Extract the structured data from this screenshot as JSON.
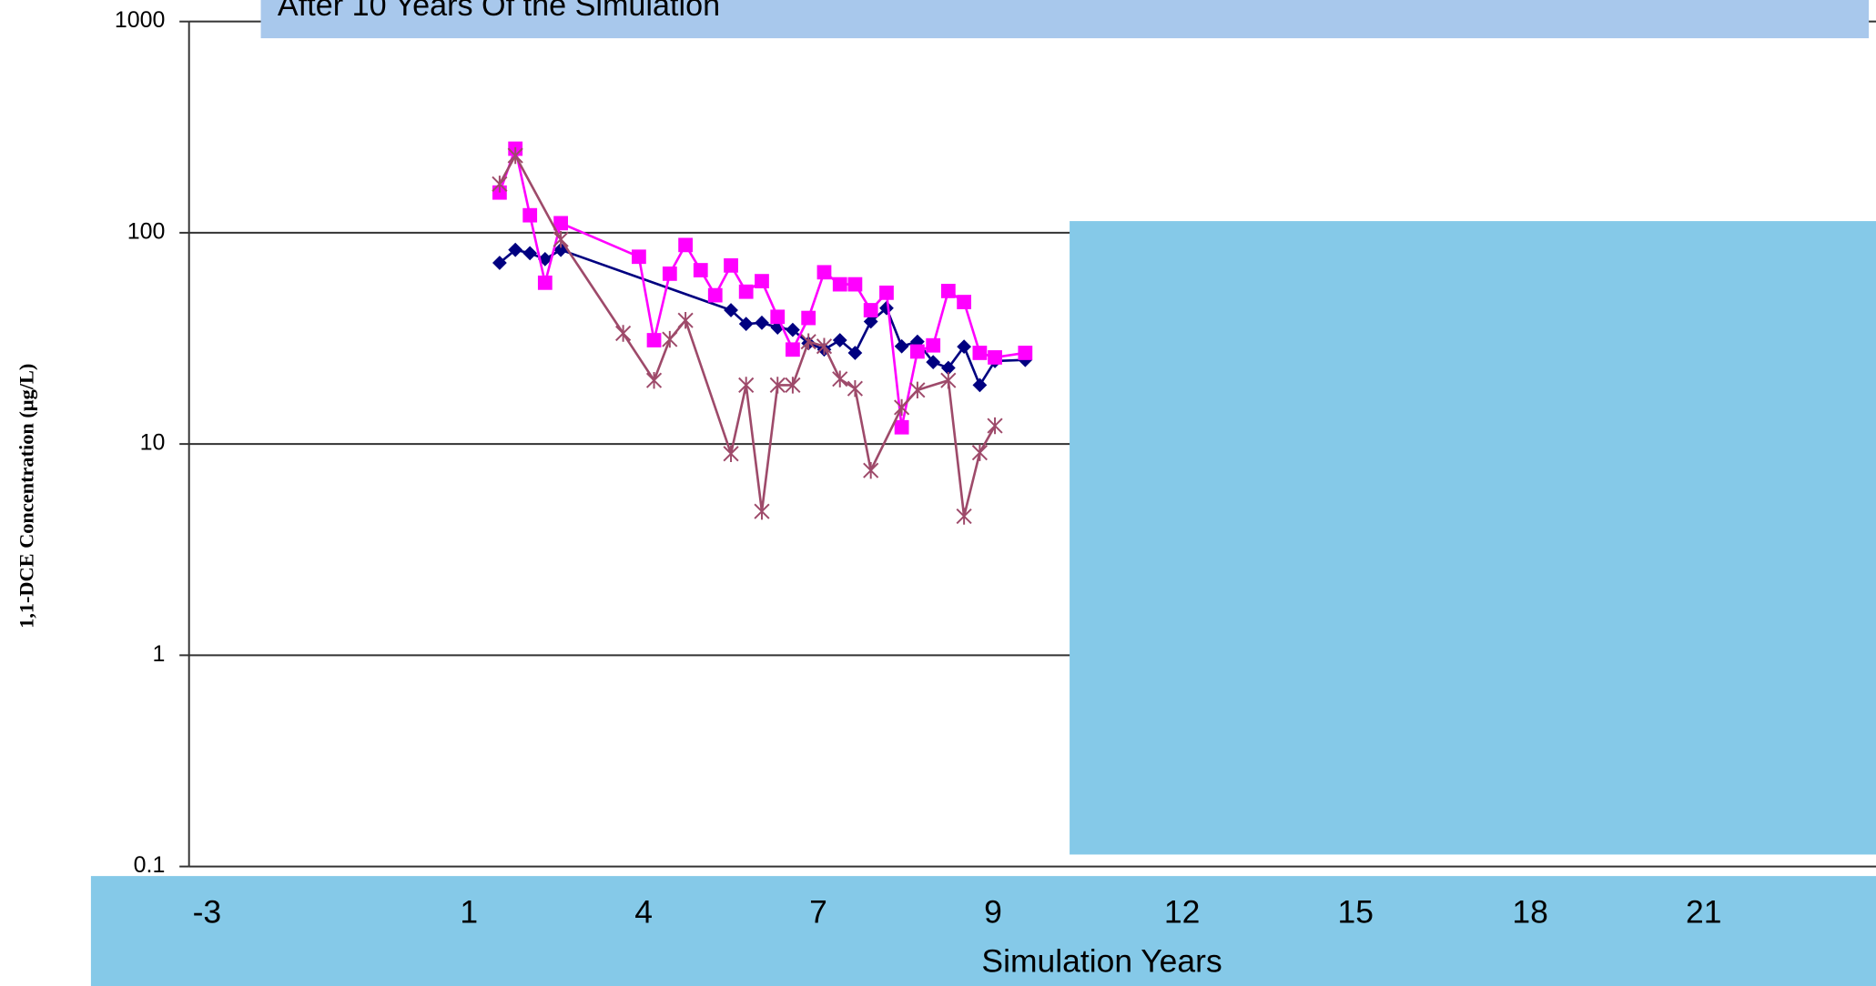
{
  "chart_data": {
    "type": "line",
    "title": "After 10 Years Of the Simulation",
    "y_label": "1,1-DCE Concentration (µg/L)",
    "x_label": "Simulation Years",
    "x_tick_labels": [
      "-3",
      "1",
      "4",
      "7",
      "9",
      "12",
      "15",
      "18",
      "21"
    ],
    "y_log": true,
    "grid": true,
    "xlim": [
      -3.8,
      25.15
    ],
    "ylim": [
      0.1,
      1000
    ],
    "yticks": [
      0.1,
      1,
      10,
      100,
      1000
    ],
    "series": [
      {
        "color": "#000080",
        "marker": "diamond",
        "x": [
          1.53,
          1.8,
          2.05,
          2.31,
          2.58,
          5.5,
          5.76,
          6.03,
          6.3,
          6.56,
          6.83,
          7.1,
          7.37,
          7.63,
          7.9,
          8.17,
          8.43,
          8.7,
          8.97,
          9.23,
          9.5,
          9.77,
          10.03,
          10.55
        ],
        "values": [
          72,
          83,
          80,
          75,
          83,
          43,
          37,
          37.5,
          35.6,
          34.7,
          30,
          28,
          31,
          27,
          38,
          44,
          29,
          30.5,
          24.4,
          22.9,
          28.9,
          19,
          24.7,
          25
        ]
      },
      {
        "color": "#ff00ff",
        "marker": "square",
        "x": [
          1.53,
          1.8,
          2.05,
          2.31,
          2.58,
          3.92,
          4.18,
          4.45,
          4.72,
          4.98,
          5.23,
          5.5,
          5.76,
          6.03,
          6.3,
          6.56,
          6.83,
          7.1,
          7.37,
          7.63,
          7.9,
          8.17,
          8.43,
          8.7,
          8.97,
          9.23,
          9.5,
          9.77,
          10.03,
          10.55
        ],
        "values": [
          155,
          250,
          121,
          58,
          111,
          77,
          31,
          64,
          87.5,
          66.5,
          50.6,
          70,
          52.6,
          59,
          40,
          28,
          39.5,
          65,
          57,
          57,
          43,
          52,
          12,
          27.4,
          29.3,
          53,
          47,
          27,
          25.7,
          27
        ]
      },
      {
        "color": "#9e4a6a",
        "marker": "star",
        "x": [
          1.53,
          1.8,
          2.58,
          3.65,
          4.18,
          4.45,
          4.72,
          5.5,
          5.76,
          6.03,
          6.3,
          6.56,
          6.83,
          7.1,
          7.37,
          7.63,
          7.9,
          8.43,
          8.7,
          9.23,
          9.5,
          9.77,
          10.03
        ],
        "values": [
          170,
          232,
          93,
          33.4,
          20,
          31.3,
          38.5,
          9,
          19,
          4.8,
          19,
          19,
          30.5,
          29,
          20.3,
          18.3,
          7.5,
          14.9,
          18,
          20,
          4.55,
          9.1,
          12.2
        ]
      }
    ]
  }
}
